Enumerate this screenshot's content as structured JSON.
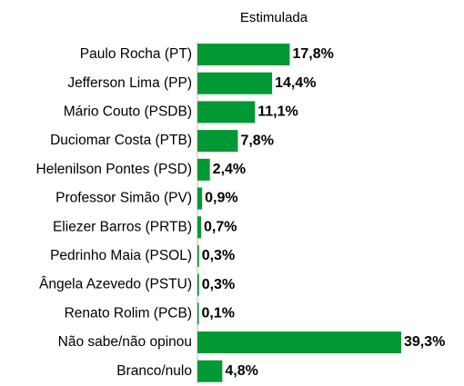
{
  "chart_data": {
    "type": "bar",
    "orientation": "horizontal",
    "title": "Estimulada",
    "color": "#009933",
    "categories": [
      "Paulo Rocha (PT)",
      "Jefferson Lima (PP)",
      "Mário Couto (PSDB)",
      "Duciomar Costa (PTB)",
      "Helenilson Pontes (PSD)",
      "Professor Simão (PV)",
      "Eliezer Barros (PRTB)",
      "Pedrinho Maia (PSOL)",
      "Ângela Azevedo (PSTU)",
      "Renato Rolim (PCB)",
      "Não sabe/não opinou",
      "Branco/nulo"
    ],
    "values": [
      17.8,
      14.4,
      11.1,
      7.8,
      2.4,
      0.9,
      0.7,
      0.3,
      0.3,
      0.1,
      39.3,
      4.8
    ],
    "value_labels": [
      "17,8%",
      "14,4%",
      "11,1%",
      "7,8%",
      "2,4%",
      "0,9%",
      "0,7%",
      "0,3%",
      "0,3%",
      "0,1%",
      "39,3%",
      "4,8%"
    ]
  }
}
